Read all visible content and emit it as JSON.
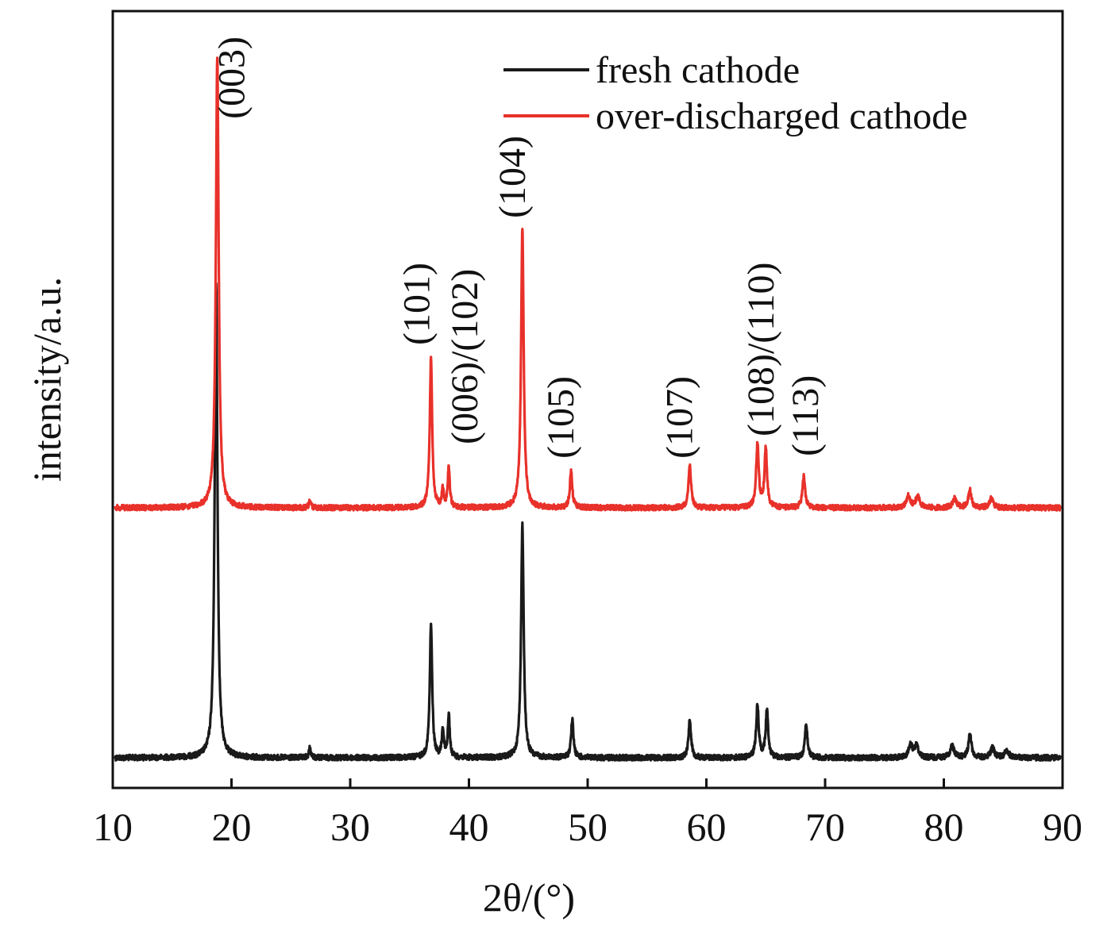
{
  "chart_data": {
    "type": "line",
    "xlabel": "2θ/(°)",
    "ylabel": "intensity/a.u.",
    "xlim": [
      10,
      90
    ],
    "xticks": [
      "10",
      "20",
      "30",
      "40",
      "50",
      "60",
      "70",
      "80",
      "90"
    ],
    "yticks_shown": false,
    "legend": {
      "position": "top-right",
      "entries": [
        "fresh cathode",
        "over-discharged cathode"
      ]
    },
    "colors": {
      "fresh cathode": "#1a1a1a",
      "over-discharged cathode": "#e8312a"
    },
    "series": [
      {
        "name": "fresh cathode",
        "baseline": 0.0,
        "peaks": [
          {
            "x": 18.7,
            "y": 100,
            "w": 0.14
          },
          {
            "x": 26.6,
            "y": 2,
            "w": 0.1
          },
          {
            "x": 36.8,
            "y": 28,
            "w": 0.12
          },
          {
            "x": 37.8,
            "y": 6,
            "w": 0.1
          },
          {
            "x": 38.3,
            "y": 9,
            "w": 0.1
          },
          {
            "x": 44.5,
            "y": 49,
            "w": 0.13
          },
          {
            "x": 48.7,
            "y": 8,
            "w": 0.12
          },
          {
            "x": 58.6,
            "y": 8,
            "w": 0.13
          },
          {
            "x": 64.3,
            "y": 11,
            "w": 0.13
          },
          {
            "x": 65.1,
            "y": 10,
            "w": 0.13
          },
          {
            "x": 68.4,
            "y": 7,
            "w": 0.13
          },
          {
            "x": 77.2,
            "y": 2.5,
            "w": 0.2
          },
          {
            "x": 77.7,
            "y": 2.5,
            "w": 0.2
          },
          {
            "x": 80.7,
            "y": 2.5,
            "w": 0.2
          },
          {
            "x": 82.2,
            "y": 5,
            "w": 0.15
          },
          {
            "x": 84.1,
            "y": 2,
            "w": 0.2
          },
          {
            "x": 85.3,
            "y": 1.5,
            "w": 0.2
          }
        ]
      },
      {
        "name": "over-discharged cathode",
        "baseline": 0.0,
        "peaks": [
          {
            "x": 18.8,
            "y": 100,
            "w": 0.14
          },
          {
            "x": 26.6,
            "y": 1.5,
            "w": 0.1
          },
          {
            "x": 36.8,
            "y": 33,
            "w": 0.12
          },
          {
            "x": 37.8,
            "y": 4,
            "w": 0.1
          },
          {
            "x": 38.3,
            "y": 9,
            "w": 0.1
          },
          {
            "x": 44.5,
            "y": 62,
            "w": 0.13
          },
          {
            "x": 48.6,
            "y": 8,
            "w": 0.12
          },
          {
            "x": 58.6,
            "y": 9.5,
            "w": 0.13
          },
          {
            "x": 64.3,
            "y": 14,
            "w": 0.13
          },
          {
            "x": 65.0,
            "y": 13,
            "w": 0.13
          },
          {
            "x": 68.2,
            "y": 7,
            "w": 0.13
          },
          {
            "x": 77.0,
            "y": 2.5,
            "w": 0.2
          },
          {
            "x": 77.8,
            "y": 2.5,
            "w": 0.2
          },
          {
            "x": 80.9,
            "y": 2,
            "w": 0.2
          },
          {
            "x": 82.2,
            "y": 4,
            "w": 0.15
          },
          {
            "x": 84.0,
            "y": 2,
            "w": 0.2
          }
        ]
      }
    ],
    "annotations": [
      {
        "text": "(003)",
        "x": 18.8
      },
      {
        "text": "(101)",
        "x": 36.8
      },
      {
        "text": "(006)/(102)",
        "x": 38.3
      },
      {
        "text": "(104)",
        "x": 44.5
      },
      {
        "text": "(105)",
        "x": 48.6
      },
      {
        "text": "(107)",
        "x": 58.6
      },
      {
        "text": "(108)/(110)",
        "x": 64.7
      },
      {
        "text": "(113)",
        "x": 68.2
      }
    ]
  }
}
